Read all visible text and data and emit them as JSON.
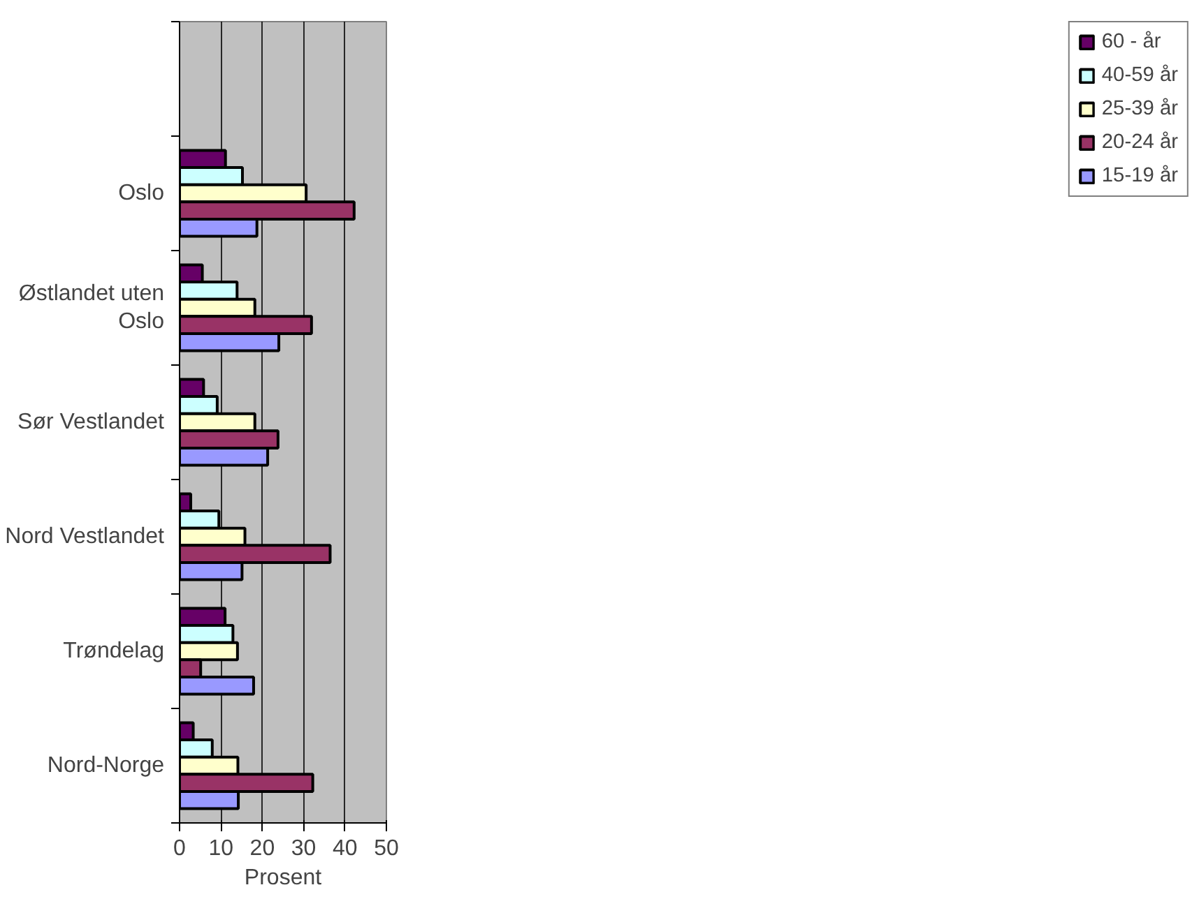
{
  "chart_data": {
    "type": "bar",
    "orientation": "horizontal",
    "xlabel": "Prosent",
    "categories": [
      null,
      "Oslo",
      "Østlandet uten Oslo",
      "Sør Vestlandet",
      "Nord Vestlandet",
      "Trøndelag",
      "Nord-Norge"
    ],
    "series": [
      {
        "name": "60 - år",
        "color": "#660066",
        "values": [
          null,
          11.1,
          5.5,
          5.8,
          2.7,
          11.0,
          3.3
        ]
      },
      {
        "name": "40-59 år",
        "color": "#ccffff",
        "values": [
          null,
          15.2,
          13.9,
          9.1,
          9.5,
          12.9,
          7.9
        ]
      },
      {
        "name": "25-39 år",
        "color": "#ffffcc",
        "values": [
          null,
          30.6,
          18.2,
          18.2,
          15.8,
          14.0,
          14.1
        ]
      },
      {
        "name": "20-24 år",
        "color": "#993366",
        "values": [
          null,
          42.2,
          31.9,
          23.8,
          36.4,
          5.1,
          32.2
        ]
      },
      {
        "name": "15-19 år",
        "color": "#9999ff",
        "values": [
          null,
          18.7,
          24.0,
          21.3,
          15.1,
          17.9,
          14.2
        ]
      }
    ],
    "xlim": [
      0,
      50
    ],
    "xticks": [
      0,
      10,
      20,
      30,
      40,
      50
    ],
    "grid": "x",
    "legend": "right"
  }
}
